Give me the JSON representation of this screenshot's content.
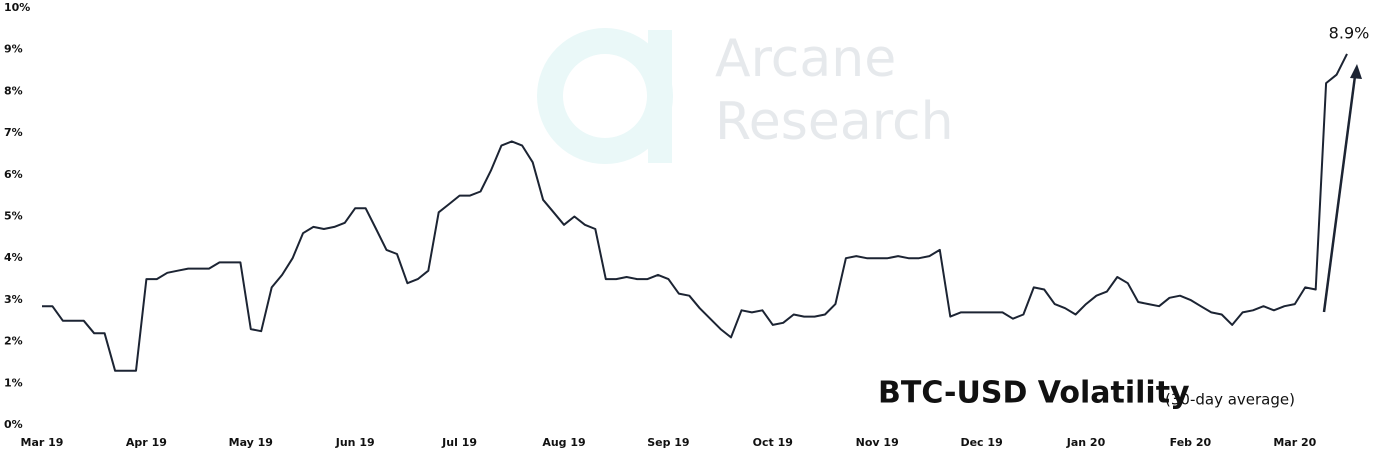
{
  "chart_data": {
    "type": "line",
    "title": "BTC-USD Volatility",
    "subtitle": "(30-day average)",
    "watermark": [
      "Arcane",
      "Research"
    ],
    "categories": [
      "Mar 19",
      null,
      null,
      null,
      null,
      null,
      null,
      null,
      null,
      null,
      "Apr 19",
      null,
      null,
      null,
      null,
      null,
      null,
      null,
      null,
      null,
      "May 19",
      null,
      null,
      null,
      null,
      null,
      null,
      null,
      null,
      null,
      "Jun 19",
      null,
      null,
      null,
      null,
      null,
      null,
      null,
      null,
      null,
      "Jul 19",
      null,
      null,
      null,
      null,
      null,
      null,
      null,
      null,
      null,
      "Aug 19",
      null,
      null,
      null,
      null,
      null,
      null,
      null,
      null,
      null,
      "Sep 19",
      null,
      null,
      null,
      null,
      null,
      null,
      null,
      null,
      null,
      "Oct 19",
      null,
      null,
      null,
      null,
      null,
      null,
      null,
      null,
      null,
      "Nov 19",
      null,
      null,
      null,
      null,
      null,
      null,
      null,
      null,
      null,
      "Dec 19",
      null,
      null,
      null,
      null,
      null,
      null,
      null,
      null,
      null,
      "Jan 20",
      null,
      null,
      null,
      null,
      null,
      null,
      null,
      null,
      null,
      "Feb 20",
      null,
      null,
      null,
      null,
      null,
      null,
      null,
      null,
      null,
      "Mar 20",
      null,
      null,
      null,
      null,
      null
    ],
    "series": [
      {
        "name": "BTC-USD Volatility",
        "color": "#1c2433",
        "values": [
          2.85,
          2.85,
          2.5,
          2.5,
          2.5,
          2.2,
          2.2,
          1.3,
          1.3,
          1.3,
          3.5,
          3.5,
          3.65,
          3.7,
          3.75,
          3.75,
          3.75,
          3.9,
          3.9,
          3.9,
          2.3,
          2.25,
          3.3,
          3.6,
          4.0,
          4.6,
          4.75,
          4.7,
          4.75,
          4.85,
          5.2,
          5.2,
          4.7,
          4.2,
          4.1,
          3.4,
          3.5,
          3.7,
          5.1,
          5.3,
          5.5,
          5.5,
          5.6,
          6.1,
          6.7,
          6.8,
          6.7,
          6.3,
          5.4,
          5.1,
          4.8,
          5.0,
          4.8,
          4.7,
          3.5,
          3.5,
          3.55,
          3.5,
          3.5,
          3.6,
          3.5,
          3.15,
          3.1,
          2.8,
          2.55,
          2.3,
          2.1,
          2.75,
          2.7,
          2.75,
          2.4,
          2.45,
          2.65,
          2.6,
          2.6,
          2.65,
          2.9,
          4.0,
          4.05,
          4.0,
          4.0,
          4.0,
          4.05,
          4.0,
          4.0,
          4.05,
          4.2,
          2.6,
          2.7,
          2.7,
          2.7,
          2.7,
          2.7,
          2.55,
          2.65,
          3.3,
          3.25,
          2.9,
          2.8,
          2.65,
          2.9,
          3.1,
          3.2,
          3.55,
          3.4,
          2.95,
          2.9,
          2.85,
          3.05,
          3.1,
          3.0,
          2.85,
          2.7,
          2.65,
          2.4,
          2.7,
          2.75,
          2.85,
          2.75,
          2.85,
          2.9,
          3.3,
          3.25,
          8.2,
          8.4,
          8.9
        ],
        "value_labels": [
          null,
          null,
          null,
          null,
          null,
          null,
          null,
          null,
          null,
          null,
          null,
          null,
          null,
          null,
          null,
          null,
          null,
          null,
          null,
          null,
          null,
          null,
          null,
          null,
          null,
          null,
          null,
          null,
          null,
          null,
          null,
          null,
          null,
          null,
          null,
          null,
          null,
          null,
          null,
          null,
          null,
          null,
          null,
          null,
          null,
          null,
          null,
          null,
          null,
          null,
          null,
          null,
          null,
          null,
          null,
          null,
          null,
          null,
          null,
          null,
          null,
          null,
          null,
          null,
          null,
          null,
          null,
          null,
          null,
          null,
          null,
          null,
          null,
          null,
          null,
          null,
          null,
          null,
          null,
          null,
          null,
          null,
          null,
          null,
          null,
          null,
          null,
          null,
          null,
          null,
          null,
          null,
          null,
          null,
          null,
          null,
          null,
          null,
          null,
          null,
          null,
          null,
          null,
          null,
          null,
          null,
          null,
          null,
          null,
          null,
          null,
          null,
          null,
          null,
          null,
          null,
          null,
          null,
          null,
          null,
          null,
          null,
          null,
          null,
          null,
          "8.9%"
        ]
      }
    ],
    "ylim": [
      0,
      10
    ],
    "yticks": [
      {
        "value": 0,
        "label": "0%"
      },
      {
        "value": 1,
        "label": "1%"
      },
      {
        "value": 2,
        "label": "2%"
      },
      {
        "value": 3,
        "label": "3%"
      },
      {
        "value": 4,
        "label": "4%"
      },
      {
        "value": 5,
        "label": "5%"
      },
      {
        "value": 6,
        "label": "6%"
      },
      {
        "value": 7,
        "label": "7%"
      },
      {
        "value": 8,
        "label": "8%"
      },
      {
        "value": 9,
        "label": "9%"
      },
      {
        "value": 10,
        "label": "10%"
      }
    ],
    "grid": false
  }
}
